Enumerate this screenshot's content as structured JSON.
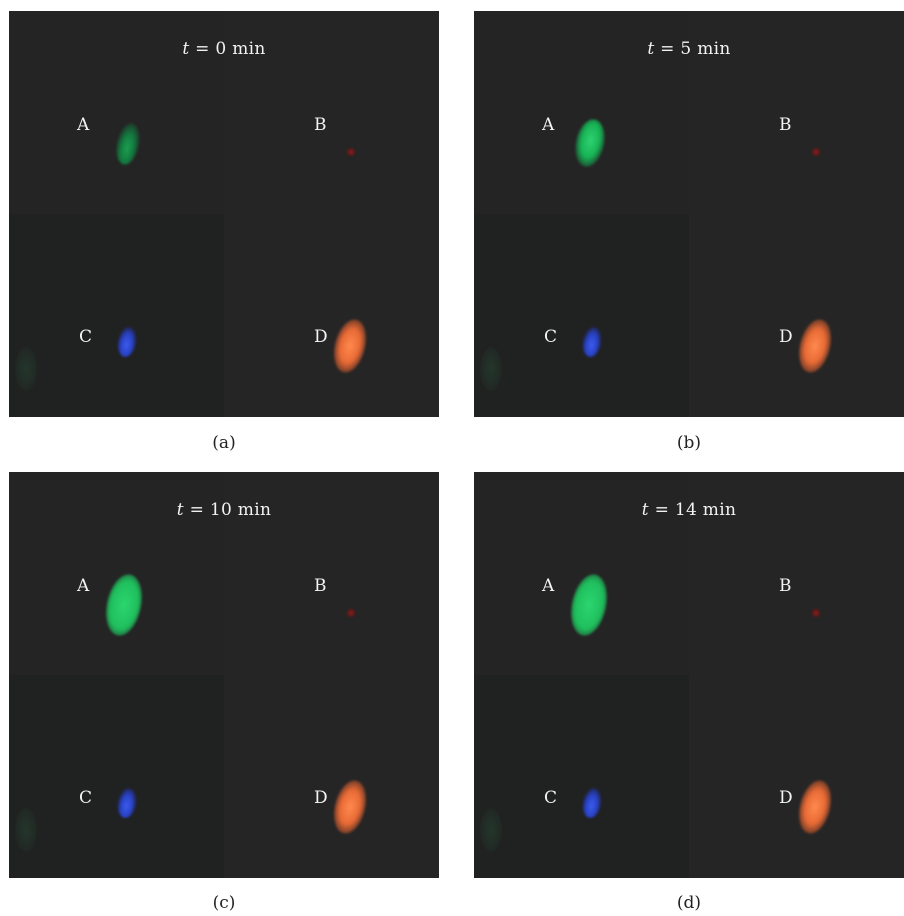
{
  "panels": [
    {
      "caption": "(a)",
      "time_var": "t",
      "time_rest": " = 0 min",
      "labels": [
        "A",
        "B",
        "C",
        "D"
      ]
    },
    {
      "caption": "(b)",
      "time_var": "t",
      "time_rest": " = 5 min",
      "labels": [
        "A",
        "B",
        "C",
        "D"
      ]
    },
    {
      "caption": "(c)",
      "time_var": "t",
      "time_rest": " = 10 min",
      "labels": [
        "A",
        "B",
        "C",
        "D"
      ]
    },
    {
      "caption": "(d)",
      "time_var": "t",
      "time_rest": " = 14 min",
      "labels": [
        "A",
        "B",
        "C",
        "D"
      ]
    }
  ],
  "colors": {
    "background": "#232323",
    "well_A": "#17b455",
    "well_B": "#961919",
    "well_C": "#2841c2",
    "well_D": "#e86a35"
  }
}
